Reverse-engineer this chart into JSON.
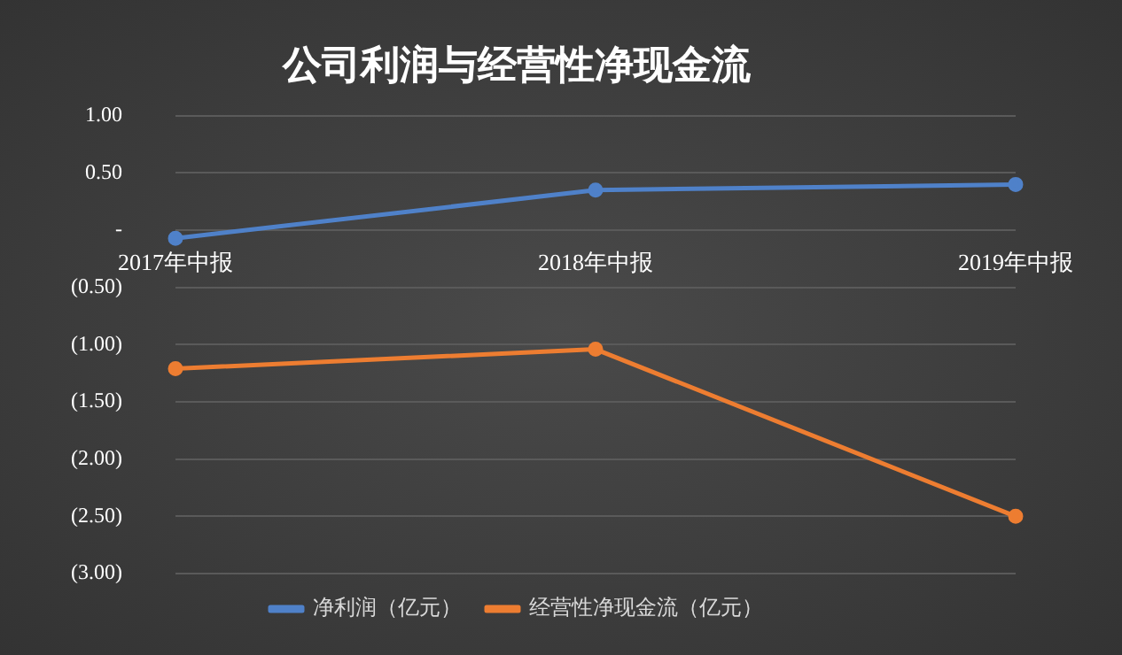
{
  "chart_data": {
    "type": "line",
    "title": "公司利润与经营性净现金流",
    "categories": [
      "2017年中报",
      "2018年中报",
      "2019年中报"
    ],
    "series": [
      {
        "name": "净利润（亿元）",
        "color": "#4f81c9",
        "values": [
          -0.07,
          0.35,
          0.4
        ]
      },
      {
        "name": "经营性净现金流（亿元）",
        "color": "#ed7d31",
        "values": [
          -1.21,
          -1.04,
          -2.5
        ]
      }
    ],
    "ylim": [
      -3,
      1
    ],
    "yticks": [
      {
        "value": 1,
        "label": "1.00"
      },
      {
        "value": 0.5,
        "label": "0.50"
      },
      {
        "value": 0,
        "label": "-"
      },
      {
        "value": -0.5,
        "label": "(0.50)"
      },
      {
        "value": -1,
        "label": "(1.00)"
      },
      {
        "value": -1.5,
        "label": "(1.50)"
      },
      {
        "value": -2,
        "label": "(2.00)"
      },
      {
        "value": -2.5,
        "label": "(2.50)"
      },
      {
        "value": -3,
        "label": "(3.00)"
      }
    ],
    "grid": "y",
    "legend": "bottom",
    "marker": "circle",
    "line_style": "solid"
  }
}
